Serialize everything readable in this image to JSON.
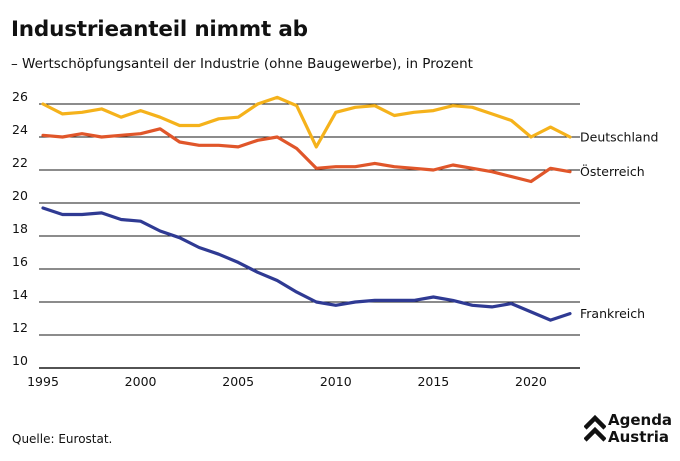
{
  "header": {
    "title": "Industrieanteil nimmt ab",
    "subtitle": "– Wertschöpfungsanteil der Industrie (ohne Baugewerbe), in Prozent"
  },
  "footer": {
    "source": "Quelle: Eurostat.",
    "logo_line1": "Agenda",
    "logo_line2": "Austria"
  },
  "colors": {
    "Deutschland": "#f5b21b",
    "Österreich": "#e0562a",
    "Frankreich": "#2f3a93",
    "grid": "#1a1a1a"
  },
  "chart_data": {
    "type": "line",
    "x": [
      1995,
      1996,
      1997,
      1998,
      1999,
      2000,
      2001,
      2002,
      2003,
      2004,
      2005,
      2006,
      2007,
      2008,
      2009,
      2010,
      2011,
      2012,
      2013,
      2014,
      2015,
      2016,
      2017,
      2018,
      2019,
      2020,
      2021,
      2022
    ],
    "series": [
      {
        "name": "Deutschland",
        "values": [
          26.0,
          25.4,
          25.5,
          25.7,
          25.2,
          25.6,
          25.2,
          24.7,
          24.7,
          25.1,
          25.2,
          26.0,
          26.4,
          25.9,
          23.4,
          25.5,
          25.8,
          25.9,
          25.3,
          25.5,
          25.6,
          25.9,
          25.8,
          25.4,
          25.0,
          24.0,
          24.6,
          24.0
        ]
      },
      {
        "name": "Österreich",
        "values": [
          24.1,
          24.0,
          24.2,
          24.0,
          24.1,
          24.2,
          24.5,
          23.7,
          23.5,
          23.5,
          23.4,
          23.8,
          24.0,
          23.3,
          22.1,
          22.2,
          22.2,
          22.4,
          22.2,
          22.1,
          22.0,
          22.3,
          22.1,
          21.9,
          21.6,
          21.3,
          22.1,
          21.9
        ]
      },
      {
        "name": "Frankreich",
        "values": [
          19.7,
          19.3,
          19.3,
          19.4,
          19.0,
          18.9,
          18.3,
          17.9,
          17.3,
          16.9,
          16.4,
          15.8,
          15.3,
          14.6,
          14.0,
          13.8,
          14.0,
          14.1,
          14.1,
          14.1,
          14.3,
          14.1,
          13.8,
          13.7,
          13.9,
          13.4,
          12.9,
          13.3
        ]
      }
    ],
    "xlim": [
      1995,
      2022
    ],
    "ylim": [
      10,
      26
    ],
    "xticks": [
      1995,
      2000,
      2005,
      2010,
      2015,
      2020
    ],
    "yticks": [
      10,
      12,
      14,
      16,
      18,
      20,
      22,
      24,
      26
    ],
    "grid": true,
    "legend": "direct labels at line ends"
  }
}
